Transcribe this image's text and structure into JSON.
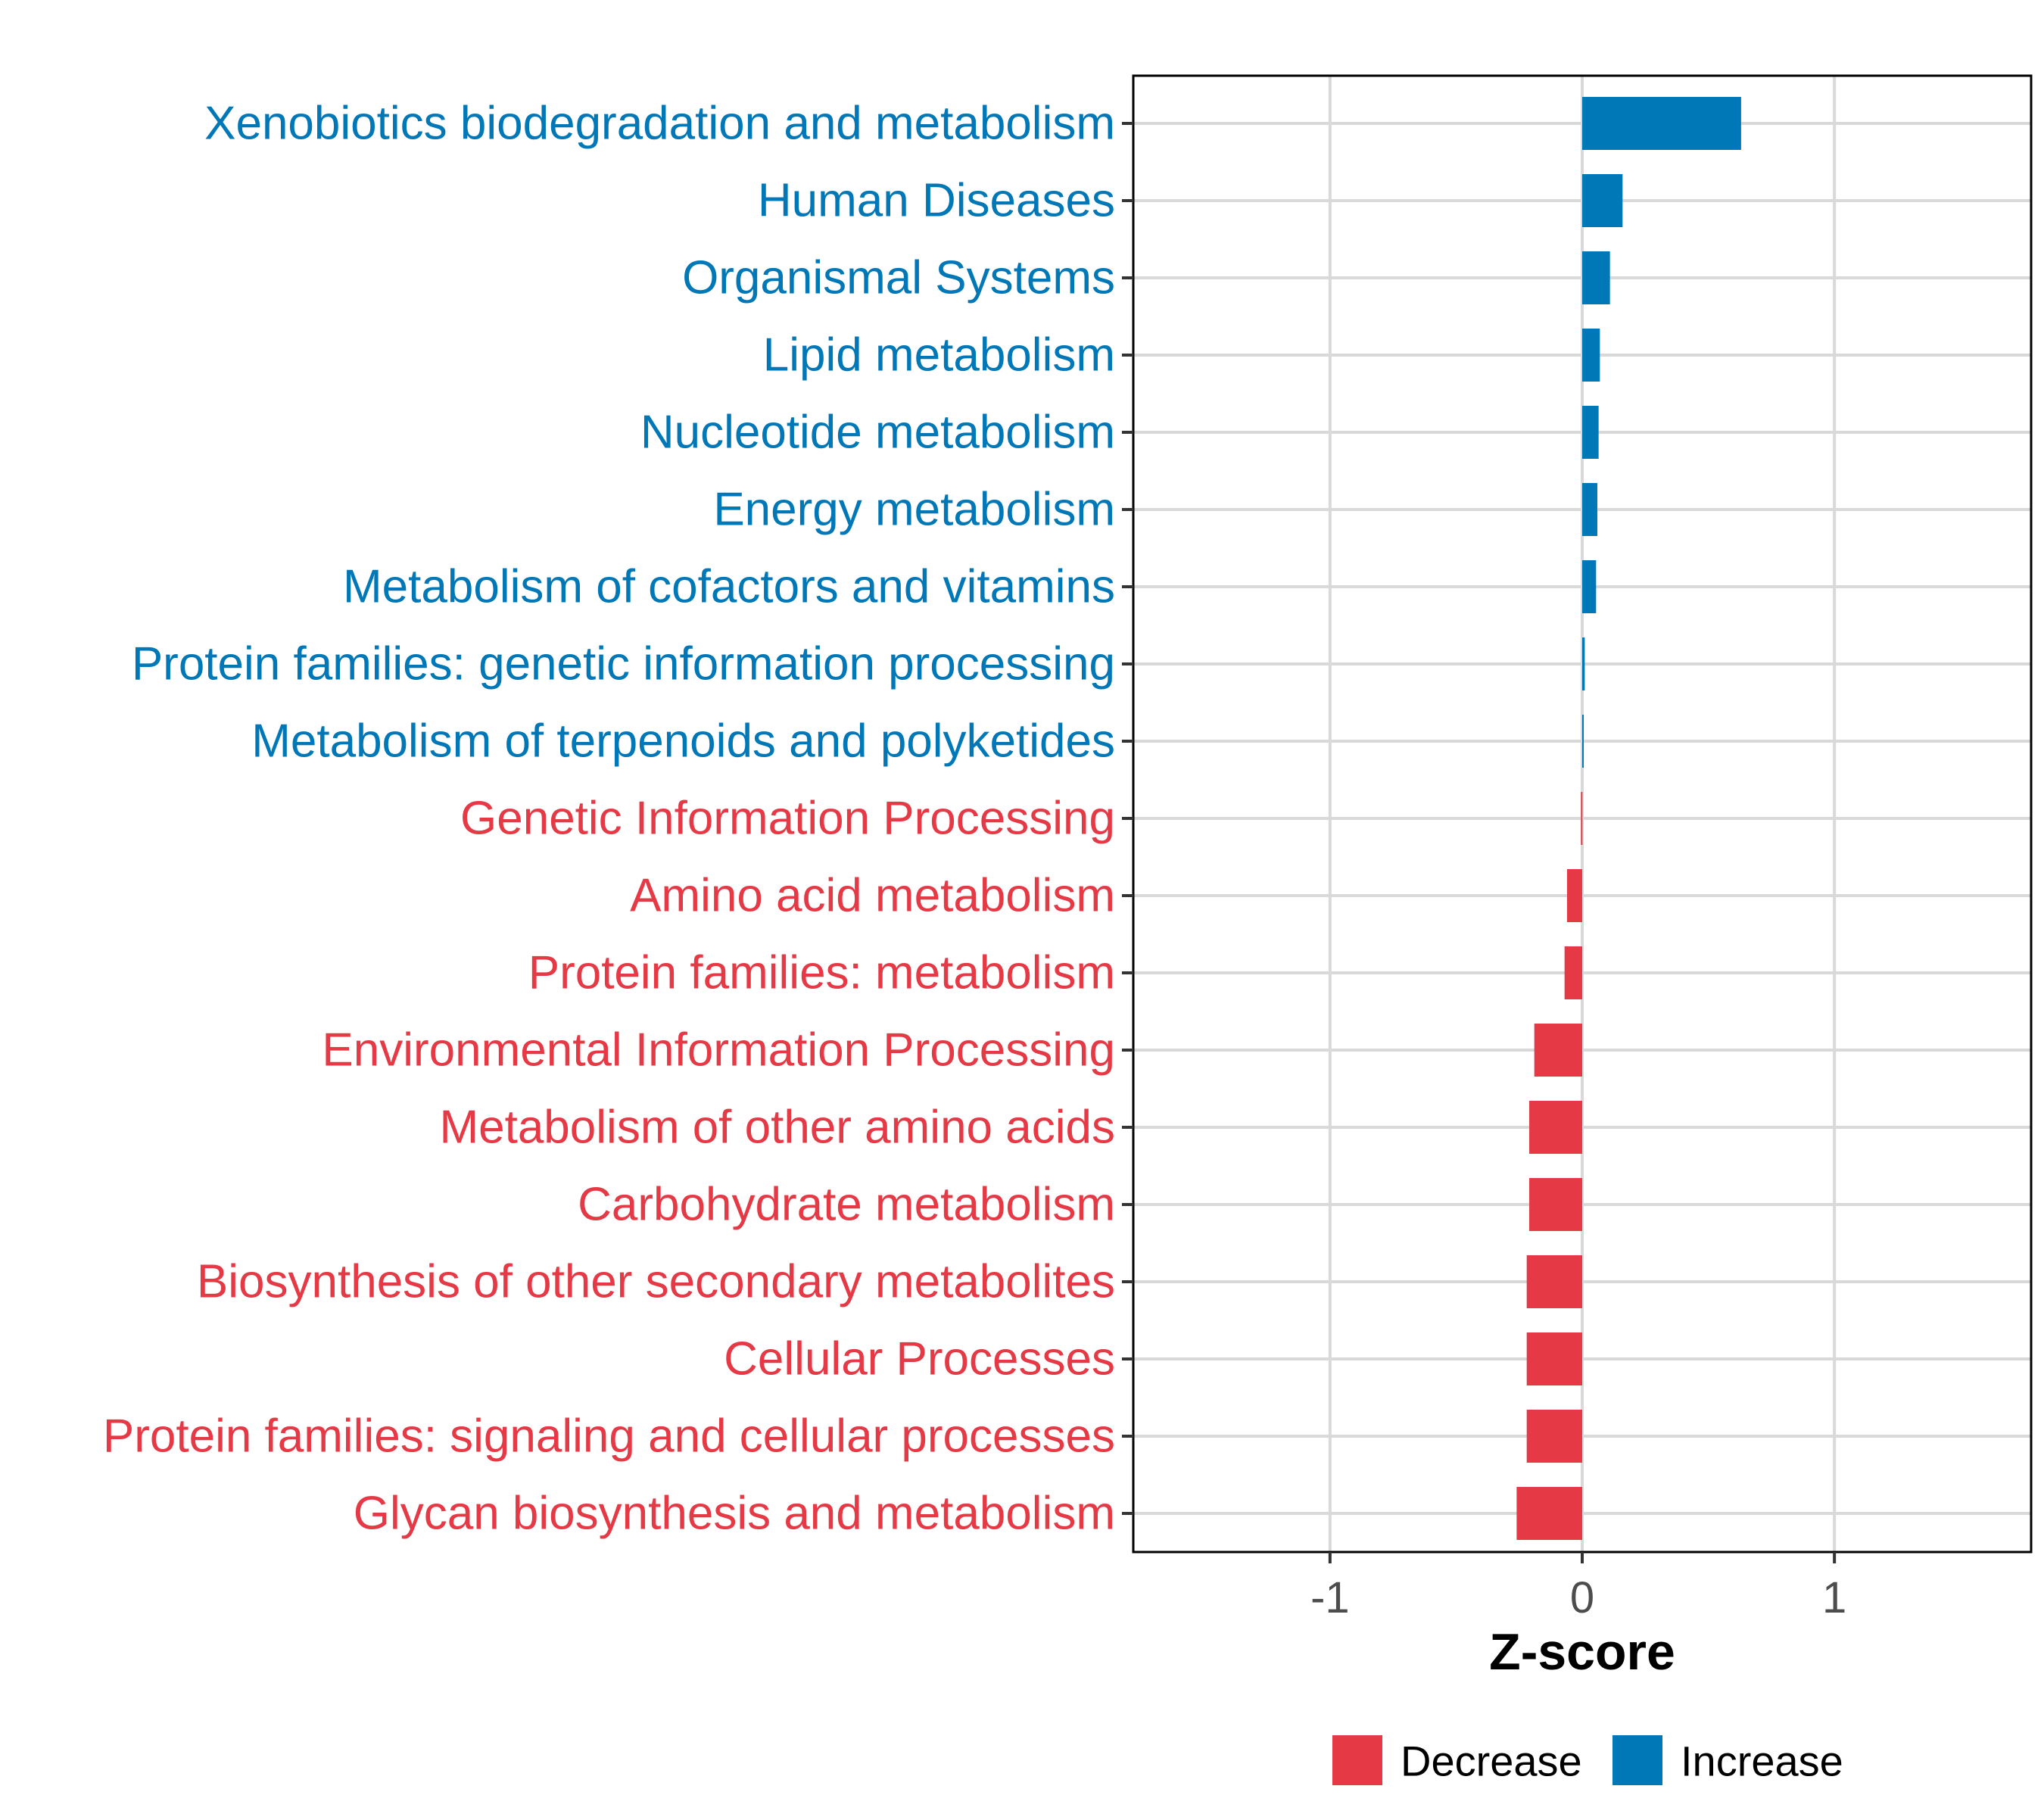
{
  "colors": {
    "decrease": "#E63946",
    "increase": "#0077B6",
    "grid": "#D9D9D9",
    "axis": "#000000",
    "tick_text": "#4D4D4D"
  },
  "chart_data": {
    "type": "bar",
    "orientation": "horizontal",
    "xlabel": "Z-score",
    "xlim": [
      -1.78,
      1.78
    ],
    "xticks": [
      -1,
      0,
      1
    ],
    "xtick_labels": [
      "-1",
      "0",
      "1"
    ],
    "grid": true,
    "legend": {
      "placement": "bottom",
      "entries": [
        {
          "label": "Decrease",
          "color_key": "decrease"
        },
        {
          "label": "Increase",
          "color_key": "increase"
        }
      ]
    },
    "categories": [
      "Xenobiotics biodegradation and metabolism",
      "Human Diseases",
      "Organismal Systems",
      "Lipid metabolism",
      "Nucleotide metabolism",
      "Energy metabolism",
      "Metabolism of cofactors and vitamins",
      "Protein families: genetic information processing",
      "Metabolism of terpenoids and polyketides",
      "Genetic Information Processing",
      "Amino acid metabolism",
      "Protein families: metabolism",
      "Environmental Information Processing",
      "Metabolism of other amino acids",
      "Carbohydrate metabolism",
      "Biosynthesis of other secondary metabolites",
      "Cellular Processes",
      "Protein families: signaling and cellular processes",
      "Glycan biosynthesis and metabolism"
    ],
    "values": [
      0.63,
      0.16,
      0.11,
      0.07,
      0.065,
      0.06,
      0.055,
      0.01,
      0.004,
      -0.005,
      -0.06,
      -0.07,
      -0.19,
      -0.21,
      -0.21,
      -0.22,
      -0.22,
      -0.22,
      -0.26
    ],
    "groups": [
      "Increase",
      "Increase",
      "Increase",
      "Increase",
      "Increase",
      "Increase",
      "Increase",
      "Increase",
      "Increase",
      "Decrease",
      "Decrease",
      "Decrease",
      "Decrease",
      "Decrease",
      "Decrease",
      "Decrease",
      "Decrease",
      "Decrease",
      "Decrease"
    ]
  }
}
